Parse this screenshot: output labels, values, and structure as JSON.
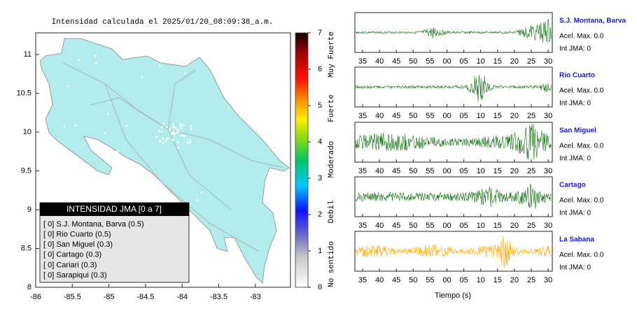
{
  "map": {
    "title": "Intensidad calculada el 2025/01/20_08:09:38_a.m.",
    "xlim": [
      -86,
      -82.52
    ],
    "xticks": [
      -86,
      -85.5,
      -85,
      -84.5,
      -84,
      -83.5,
      -83
    ],
    "ylim": [
      8,
      11.28
    ],
    "yticks": [
      8,
      8.5,
      9,
      9.5,
      10,
      10.5,
      11
    ],
    "land_color": "#b3ecec",
    "legend": {
      "title": "INTENSIDAD JMA [0 a 7]",
      "entries": [
        "[ 0]  S.J. Montana, Barva (0.5)",
        "[ 0]  Rio Cuarto (0.5)",
        "[ 0]  San Miguel (0.3)",
        "[ 0]  Cartago (0.3)",
        "[ 0]  Cariari (0.3)",
        "[ 0]  Sarapiqui (0.3)"
      ]
    }
  },
  "colorbar": {
    "lim": [
      0,
      7
    ],
    "ticks": [
      0,
      1,
      2,
      3,
      4,
      5,
      6,
      7
    ],
    "labels": [
      "No sentido",
      "Debil",
      "Moderado",
      "Fuerte",
      "Muy Fuerte"
    ]
  },
  "waveforms": {
    "xlabel": "Tiempo (s)",
    "xticks": [
      "35",
      "40",
      "45",
      "50",
      "55",
      "00",
      "05",
      "10",
      "15",
      "20",
      "25",
      "30"
    ],
    "panels": [
      {
        "station": "S.J. Montana, Barva",
        "acel": "Acel. Max. 0.0",
        "int": "Int JMA: 0",
        "color": "#0f6e0f"
      },
      {
        "station": "Rio Cuarto",
        "acel": "Acel. Max. 0.0",
        "int": "Int JMA: 0",
        "color": "#0f6e0f"
      },
      {
        "station": "San Miguel",
        "acel": "Acel. Max. 0.0",
        "int": "Int JMA: 0",
        "color": "#0f6e0f"
      },
      {
        "station": "Cartago",
        "acel": "Acel. Max. 0.0",
        "int": "Int JMA: 0",
        "color": "#0f6e0f"
      },
      {
        "station": "La Sabana",
        "acel": "Acel. Max. 0.0",
        "int": "Int JMA: 0",
        "color": "#ffaa00"
      }
    ]
  }
}
